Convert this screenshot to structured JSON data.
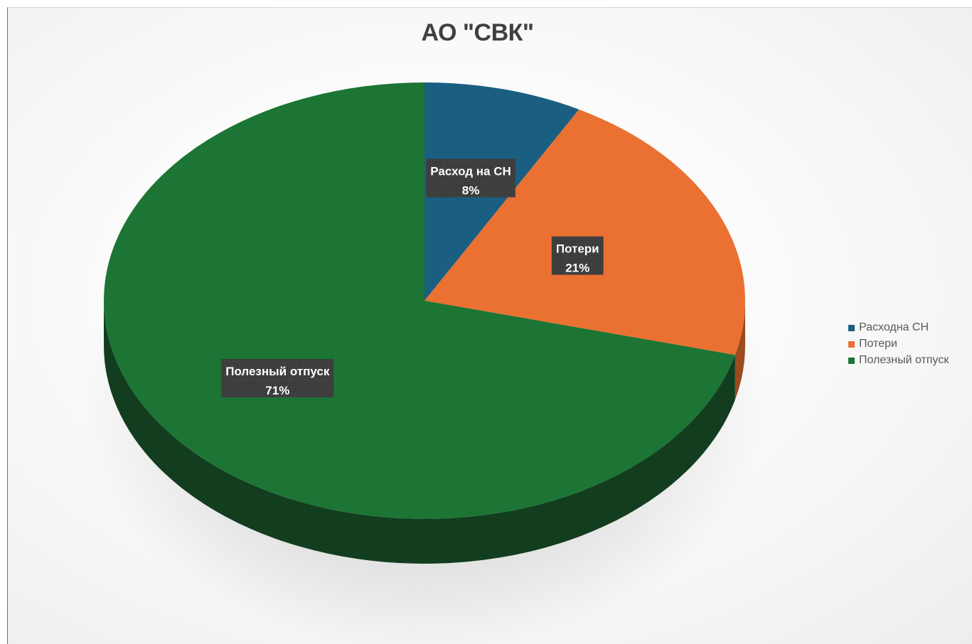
{
  "chart_data": {
    "type": "pie",
    "title": "АО \"СВК\"",
    "categories": [
      "Расход на СН",
      "Потери",
      "Полезный отпуск"
    ],
    "legend_labels": [
      "Расходна СН",
      "Потери",
      "Полезный отпуск"
    ],
    "values": [
      8,
      21,
      71
    ],
    "data_labels": [
      {
        "name": "Расход на СН",
        "value": "8%"
      },
      {
        "name": "Потери",
        "value": "21%"
      },
      {
        "name": "Полезный отпуск",
        "value": "71%"
      }
    ],
    "colors": [
      "#1a5e82",
      "#ea7132",
      "#1c7534"
    ],
    "side_colors": [
      "#0f3a52",
      "#9c4a1f",
      "#123d1e"
    ],
    "legend_position": "right",
    "style": "3d"
  }
}
